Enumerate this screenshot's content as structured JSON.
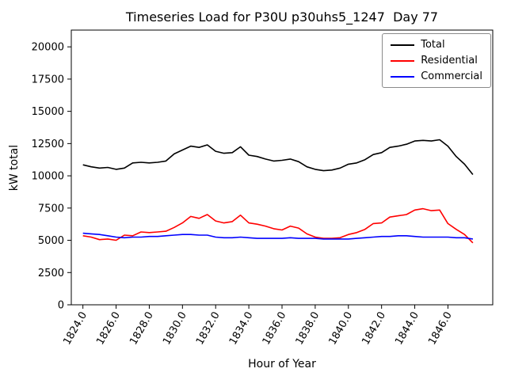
{
  "chart_data": {
    "type": "line",
    "title": "Timeseries Load for P30U p30uhs5_1247  Day 77",
    "xlabel": "Hour of Year",
    "ylabel": "kW total",
    "xlim": [
      1823.3,
      1848.7
    ],
    "ylim": [
      0,
      21300
    ],
    "grid": false,
    "legend_position": "upper right",
    "yticks": [
      0,
      2500,
      5000,
      7500,
      10000,
      12500,
      15000,
      17500,
      20000
    ],
    "xticks": [
      1824,
      1826,
      1828,
      1830,
      1832,
      1834,
      1836,
      1838,
      1840,
      1842,
      1844,
      1846
    ],
    "xtick_labels": [
      "1824.0",
      "1826.0",
      "1828.0",
      "1830.0",
      "1832.0",
      "1834.0",
      "1836.0",
      "1838.0",
      "1840.0",
      "1842.0",
      "1844.0",
      "1846.0"
    ],
    "x": [
      1824.0,
      1824.5,
      1825.0,
      1825.5,
      1826.0,
      1826.5,
      1827.0,
      1827.5,
      1828.0,
      1828.5,
      1829.0,
      1829.5,
      1830.0,
      1830.5,
      1831.0,
      1831.5,
      1832.0,
      1832.5,
      1833.0,
      1833.5,
      1834.0,
      1834.5,
      1835.0,
      1835.5,
      1836.0,
      1836.5,
      1837.0,
      1837.5,
      1838.0,
      1838.5,
      1839.0,
      1839.5,
      1840.0,
      1840.5,
      1841.0,
      1841.5,
      1842.0,
      1842.5,
      1843.0,
      1843.5,
      1844.0,
      1844.5,
      1845.0,
      1845.5,
      1846.0,
      1846.5,
      1847.0,
      1847.5
    ],
    "series": [
      {
        "name": "Total",
        "color": "#000000",
        "values": [
          10850,
          10700,
          10600,
          10650,
          10500,
          10600,
          11000,
          11050,
          11000,
          11050,
          11150,
          11700,
          12000,
          12300,
          12200,
          12400,
          11900,
          11750,
          11800,
          12250,
          11600,
          11500,
          11300,
          11150,
          11200,
          11300,
          11100,
          10700,
          10500,
          10400,
          10450,
          10600,
          10900,
          11000,
          11250,
          11650,
          11800,
          12200,
          12300,
          12450,
          12700,
          12750,
          12700,
          12800,
          12300,
          11500,
          10900,
          10100
        ]
      },
      {
        "name": "Residential",
        "color": "#ff0000",
        "values": [
          5350,
          5250,
          5050,
          5100,
          5000,
          5400,
          5350,
          5650,
          5600,
          5650,
          5700,
          6000,
          6350,
          6850,
          6700,
          7000,
          6500,
          6350,
          6450,
          6950,
          6350,
          6250,
          6100,
          5900,
          5800,
          6100,
          5950,
          5500,
          5250,
          5150,
          5150,
          5200,
          5450,
          5600,
          5850,
          6300,
          6350,
          6800,
          6900,
          7000,
          7350,
          7450,
          7300,
          7350,
          6300,
          5850,
          5450,
          4800
        ]
      },
      {
        "name": "Commercial",
        "color": "#0000ff",
        "values": [
          5550,
          5500,
          5450,
          5350,
          5250,
          5200,
          5250,
          5250,
          5300,
          5300,
          5350,
          5400,
          5450,
          5450,
          5400,
          5400,
          5250,
          5200,
          5200,
          5250,
          5200,
          5150,
          5150,
          5150,
          5150,
          5200,
          5150,
          5150,
          5150,
          5100,
          5100,
          5100,
          5100,
          5150,
          5200,
          5250,
          5300,
          5300,
          5350,
          5350,
          5300,
          5250,
          5250,
          5250,
          5250,
          5200,
          5200,
          5100
        ]
      }
    ]
  }
}
